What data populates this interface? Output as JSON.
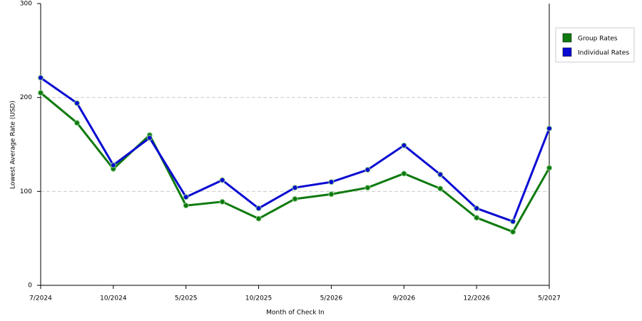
{
  "chart_data": {
    "type": "line",
    "y_label": "Lowest Average Rate (USD)",
    "x_label": "Month of Check In",
    "categories": [
      "7/2024",
      null,
      "10/2024",
      null,
      "5/2025",
      null,
      "10/2025",
      null,
      "5/2026",
      null,
      "9/2026",
      null,
      "12/2026",
      null,
      "5/2027"
    ],
    "series": [
      {
        "name": "Group Rates",
        "color": "#0f7a0f",
        "values": [
          205,
          173,
          124,
          160,
          85,
          89,
          71,
          92,
          97,
          104,
          119,
          103,
          72,
          57,
          125
        ]
      },
      {
        "name": "Individual Rates",
        "color": "#0a0ad2",
        "values": [
          221,
          194,
          128,
          157,
          94,
          112,
          82,
          104,
          110,
          123,
          149,
          118,
          82,
          68,
          167
        ]
      }
    ],
    "ylim": [
      0,
      300
    ],
    "yticks": [
      0,
      100,
      200,
      300
    ],
    "grid": true,
    "legend": "right"
  }
}
